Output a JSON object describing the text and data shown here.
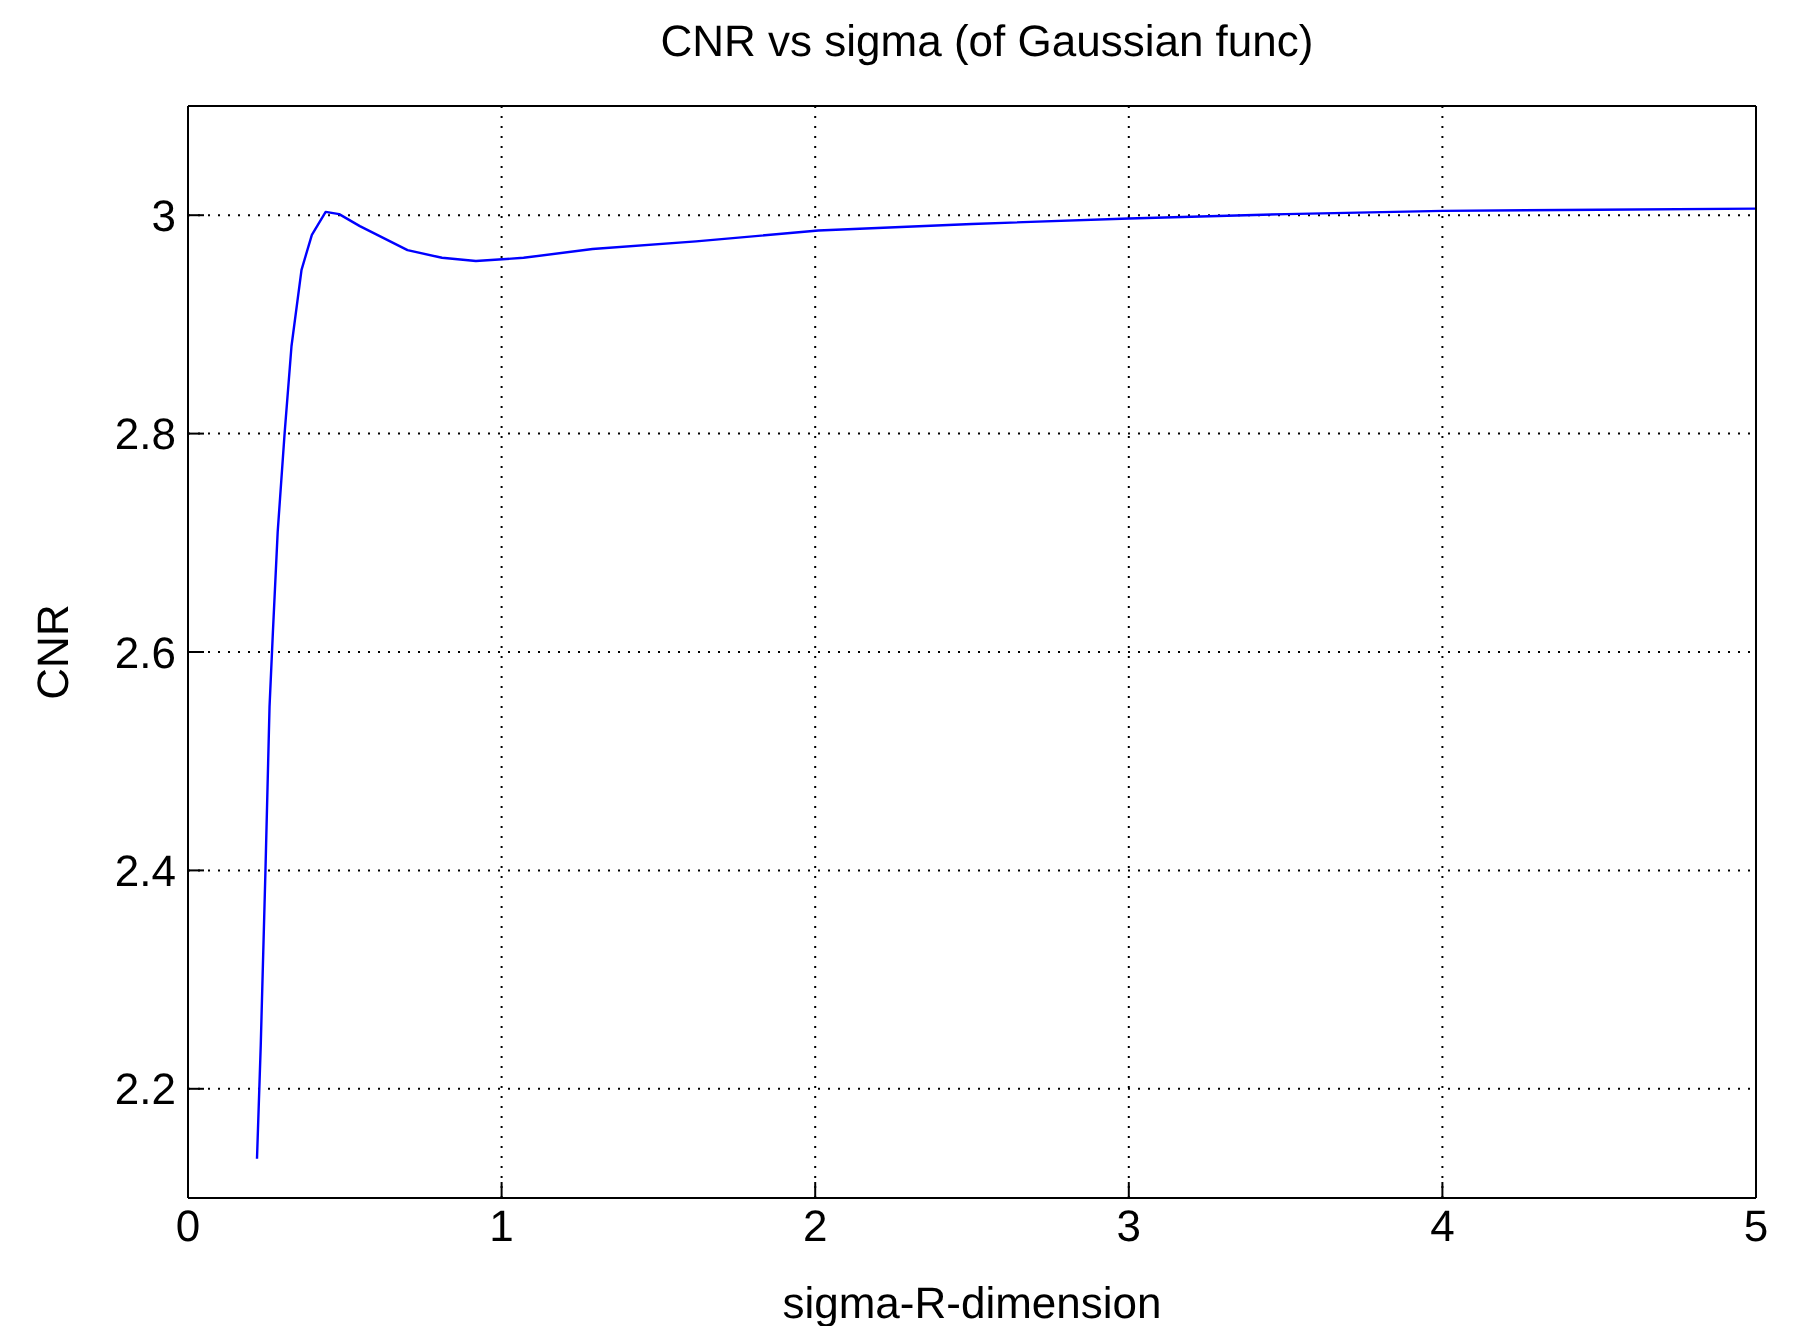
{
  "chart_data": {
    "type": "line",
    "title": "CNR vs sigma (of Gaussian func)",
    "xlabel": "sigma-R-dimension",
    "ylabel": "CNR",
    "xlim": [
      0,
      5
    ],
    "ylim": [
      2.1,
      3.1
    ],
    "xticks": [
      0,
      1,
      2,
      3,
      4,
      5
    ],
    "yticks": [
      2.2,
      2.4,
      2.6,
      2.8,
      3
    ],
    "grid": true,
    "marker": "none",
    "line_style": "solid",
    "series": [
      {
        "color": "#0000ff",
        "x": [
          0.22,
          0.232,
          0.247,
          0.26,
          0.271,
          0.286,
          0.308,
          0.33,
          0.362,
          0.395,
          0.439,
          0.482,
          0.548,
          0.7,
          0.81,
          0.918,
          1.07,
          1.29,
          1.62,
          2.01,
          2.5,
          3,
          3.5,
          4,
          4.5,
          5
        ],
        "values": [
          2.136,
          2.24,
          2.4,
          2.55,
          2.62,
          2.71,
          2.8,
          2.88,
          2.95,
          2.982,
          3.003,
          3.001,
          2.99,
          2.968,
          2.961,
          2.958,
          2.961,
          2.969,
          2.976,
          2.986,
          2.992,
          2.997,
          3.001,
          3.004,
          3.005,
          3.006
        ]
      }
    ]
  }
}
